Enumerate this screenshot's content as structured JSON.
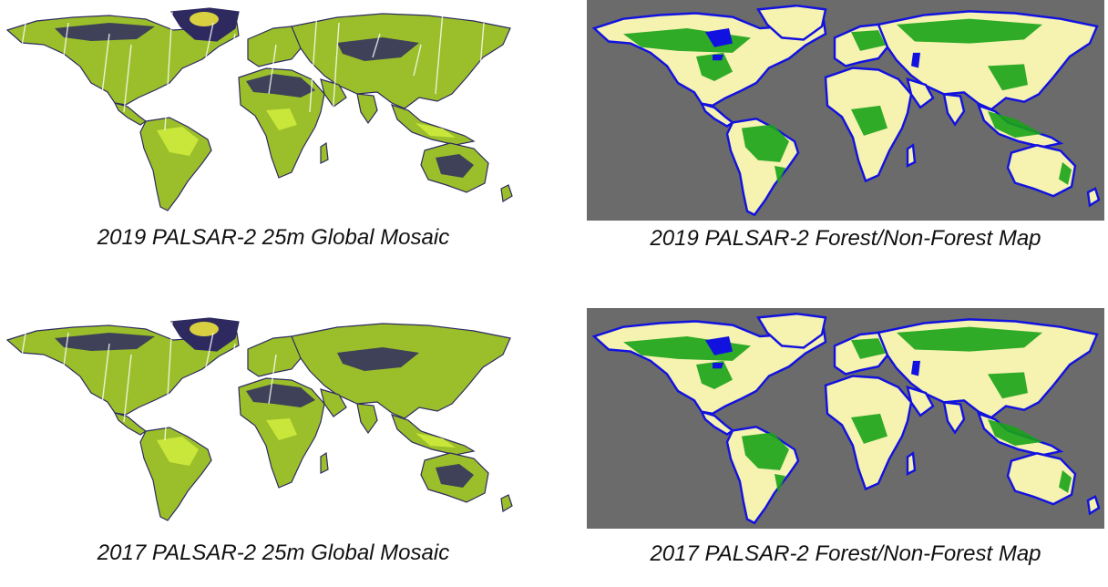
{
  "panels": [
    {
      "caption": "2019 PALSAR-2 25m Global Mosaic",
      "kind": "mosaic",
      "background": "#ffffff"
    },
    {
      "caption": "2019 PALSAR-2 Forest/Non-Forest Map",
      "kind": "fnf",
      "background": "#6b6b6b"
    },
    {
      "caption": "2017 PALSAR-2 25m Global Mosaic",
      "kind": "mosaic",
      "background": "#ffffff"
    },
    {
      "caption": "2017 PALSAR-2 Forest/Non-Forest Map",
      "kind": "fnf",
      "background": "#6b6b6b"
    }
  ],
  "colors": {
    "mosaic_land": "#9bbf2a",
    "mosaic_bright": "#c9e63a",
    "mosaic_dark": "#2e2a60",
    "mosaic_ice": "#d8d040",
    "fnf_nonforest": "#f6f2b0",
    "fnf_forest": "#1aa31a",
    "fnf_water": "#1212e0",
    "fnf_nodata": "#6b6b6b"
  }
}
